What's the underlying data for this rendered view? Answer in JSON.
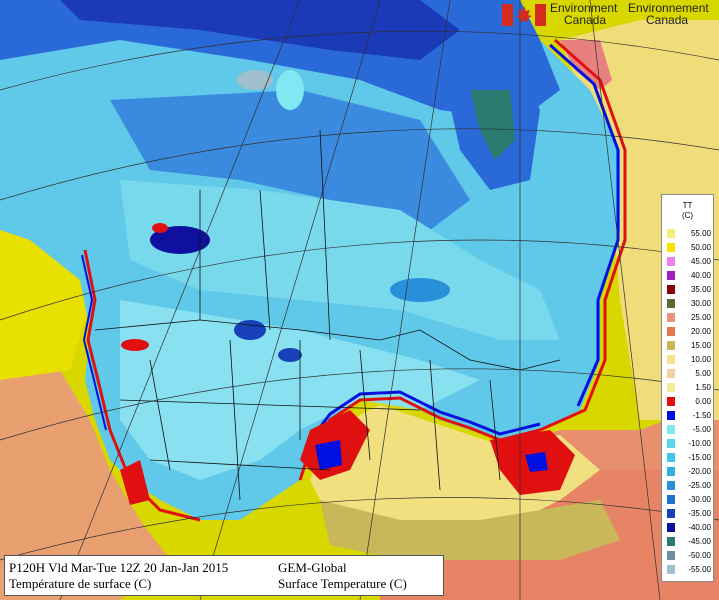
{
  "header": {
    "agency_en": "Environment",
    "agency_en_2": "Canada",
    "agency_fr": "Environnement",
    "agency_fr_2": "Canada"
  },
  "legend": {
    "title_line1": "TT",
    "title_line2": "(C)",
    "items": [
      {
        "label": "55.00",
        "color": "#f5ee7c"
      },
      {
        "label": "50.00",
        "color": "#f7e300"
      },
      {
        "label": "45.00",
        "color": "#ee82ee"
      },
      {
        "label": "40.00",
        "color": "#a020c8"
      },
      {
        "label": "35.00",
        "color": "#8b0000"
      },
      {
        "label": "30.00",
        "color": "#556b2f"
      },
      {
        "label": "25.00",
        "color": "#e8947a"
      },
      {
        "label": "20.00",
        "color": "#e07850"
      },
      {
        "label": "15.00",
        "color": "#c8b85a"
      },
      {
        "label": "10.00",
        "color": "#f4e38a"
      },
      {
        "label": "5.00",
        "color": "#f5d0a0"
      },
      {
        "label": "1.50",
        "color": "#f0ec9a"
      },
      {
        "label": "0.00",
        "color": "#e01010"
      },
      {
        "label": "-1.50",
        "color": "#0010e0"
      },
      {
        "label": "-5.00",
        "color": "#80e8f0"
      },
      {
        "label": "-10.00",
        "color": "#58d8e8"
      },
      {
        "label": "-15.00",
        "color": "#40c8e8"
      },
      {
        "label": "-20.00",
        "color": "#30b0e0"
      },
      {
        "label": "-25.00",
        "color": "#2890d8"
      },
      {
        "label": "-30.00",
        "color": "#2070d0"
      },
      {
        "label": "-35.00",
        "color": "#1840b8"
      },
      {
        "label": "-40.00",
        "color": "#1010a0"
      },
      {
        "label": "-45.00",
        "color": "#2a7a70"
      },
      {
        "label": "-50.00",
        "color": "#7090a0"
      },
      {
        "label": "-55.00",
        "color": "#a0c0d0"
      }
    ]
  },
  "info": {
    "line1_left": "P120H Vld Mar-Tue 12Z 20 Jan-Jan 2015",
    "line1_right": "GEM-Global",
    "line2_left": "Température de surface (C)",
    "line2_right": "Surface Temperature (C)"
  },
  "colors": {
    "ocean_pacific": "#d4d000",
    "ocean_atlantic": "#e88a6e",
    "cold_blue": "#2a6ad8",
    "deep_blue": "#1a2aa8",
    "cyan": "#70d8ec",
    "freezing_line": "#e01010",
    "warm_yellow": "#f0e68c"
  }
}
